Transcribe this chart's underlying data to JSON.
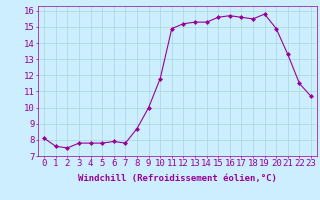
{
  "x": [
    0,
    1,
    2,
    3,
    4,
    5,
    6,
    7,
    8,
    9,
    10,
    11,
    12,
    13,
    14,
    15,
    16,
    17,
    18,
    19,
    20,
    21,
    22,
    23
  ],
  "y": [
    8.1,
    7.6,
    7.5,
    7.8,
    7.8,
    7.8,
    7.9,
    7.8,
    8.7,
    10.0,
    11.8,
    14.9,
    15.2,
    15.3,
    15.3,
    15.6,
    15.7,
    15.6,
    15.5,
    15.8,
    14.9,
    13.3,
    11.5,
    10.7
  ],
  "line_color": "#990099",
  "marker": "D",
  "marker_size": 2,
  "bg_color": "#cceeff",
  "grid_color": "#aadddd",
  "xlabel": "Windchill (Refroidissement éolien,°C)",
  "xlabel_color": "#990099",
  "tick_color": "#990099",
  "ylim": [
    7,
    16
  ],
  "xlim": [
    -0.5,
    23.5
  ],
  "yticks": [
    7,
    8,
    9,
    10,
    11,
    12,
    13,
    14,
    15,
    16
  ],
  "xticks": [
    0,
    1,
    2,
    3,
    4,
    5,
    6,
    7,
    8,
    9,
    10,
    11,
    12,
    13,
    14,
    15,
    16,
    17,
    18,
    19,
    20,
    21,
    22,
    23
  ],
  "spine_color": "#990099",
  "label_fontsize": 6.5,
  "tick_fontsize": 6.5
}
